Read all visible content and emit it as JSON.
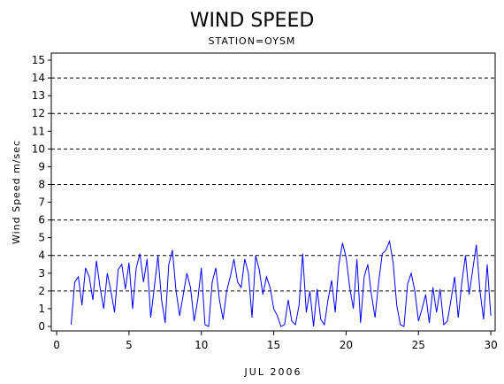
{
  "chart_data": {
    "type": "line",
    "title": "WIND SPEED",
    "subtitle": "STATION=OYSM",
    "x_label": "JUL 2006",
    "y_label": "Wind Speed m/sec",
    "x": [
      1,
      1.25,
      1.5,
      1.75,
      2,
      2.25,
      2.5,
      2.75,
      3,
      3.25,
      3.5,
      3.75,
      4,
      4.25,
      4.5,
      4.75,
      5,
      5.25,
      5.5,
      5.75,
      6,
      6.25,
      6.5,
      6.75,
      7,
      7.25,
      7.5,
      7.75,
      8,
      8.25,
      8.5,
      8.75,
      9,
      9.25,
      9.5,
      9.75,
      10,
      10.25,
      10.5,
      10.75,
      11,
      11.25,
      11.5,
      11.75,
      12,
      12.25,
      12.5,
      12.75,
      13,
      13.25,
      13.5,
      13.75,
      14,
      14.25,
      14.5,
      14.75,
      15,
      15.25,
      15.5,
      15.75,
      16,
      16.25,
      16.5,
      16.75,
      17,
      17.25,
      17.5,
      17.75,
      18,
      18.25,
      18.5,
      18.75,
      19,
      19.25,
      19.5,
      19.75,
      20,
      20.25,
      20.5,
      20.75,
      21,
      21.25,
      21.5,
      21.75,
      22,
      22.25,
      22.5,
      22.75,
      23,
      23.25,
      23.5,
      23.75,
      24,
      24.25,
      24.5,
      24.75,
      25,
      25.25,
      25.5,
      25.75,
      26,
      26.25,
      26.5,
      26.75,
      27,
      27.25,
      27.5,
      27.75,
      28,
      28.25,
      28.5,
      28.75,
      29,
      29.25,
      29.5,
      29.75,
      30
    ],
    "series": [
      {
        "name": "Wind Speed",
        "color": "#0000ff",
        "values": [
          0.1,
          2.5,
          2.8,
          1.2,
          3.3,
          2.8,
          1.5,
          3.7,
          2.2,
          1.0,
          3.0,
          2.0,
          0.8,
          3.2,
          3.5,
          2.1,
          3.6,
          1.0,
          3.3,
          4.1,
          2.5,
          3.8,
          0.5,
          2.2,
          4.0,
          1.5,
          0.2,
          3.5,
          4.3,
          2.0,
          0.6,
          1.8,
          3.0,
          2.2,
          0.3,
          1.5,
          3.3,
          0.1,
          0.0,
          2.5,
          3.3,
          1.5,
          0.4,
          2.0,
          2.8,
          3.8,
          2.5,
          2.2,
          3.8,
          3.0,
          0.5,
          4.0,
          3.2,
          1.8,
          2.8,
          2.2,
          1.0,
          0.6,
          0.0,
          0.1,
          1.5,
          0.3,
          0.1,
          1.2,
          4.1,
          0.8,
          2.0,
          0.0,
          2.1,
          0.4,
          0.1,
          1.5,
          2.6,
          0.8,
          3.5,
          4.7,
          3.9,
          2.2,
          1.0,
          3.8,
          0.2,
          2.8,
          3.5,
          1.8,
          0.5,
          2.5,
          4.1,
          4.3,
          4.8,
          3.6,
          1.2,
          0.1,
          0.0,
          2.4,
          3.0,
          2.0,
          0.3,
          1.0,
          1.8,
          0.2,
          2.2,
          0.8,
          2.1,
          0.1,
          0.3,
          1.5,
          2.8,
          0.5,
          2.5,
          4.0,
          1.8,
          3.2,
          4.6,
          2.0,
          0.4,
          3.5,
          0.6
        ]
      }
    ],
    "xlim": [
      -0.37,
      30.3
    ],
    "ylim": [
      -0.25,
      15.4
    ],
    "xticks": [
      0,
      5,
      10,
      15,
      20,
      25,
      30
    ],
    "yticks": [
      0,
      1,
      2,
      3,
      4,
      5,
      6,
      7,
      8,
      9,
      10,
      11,
      12,
      13,
      14,
      15
    ],
    "grid_lines": [
      2,
      4,
      6,
      8,
      10,
      12,
      14
    ]
  }
}
